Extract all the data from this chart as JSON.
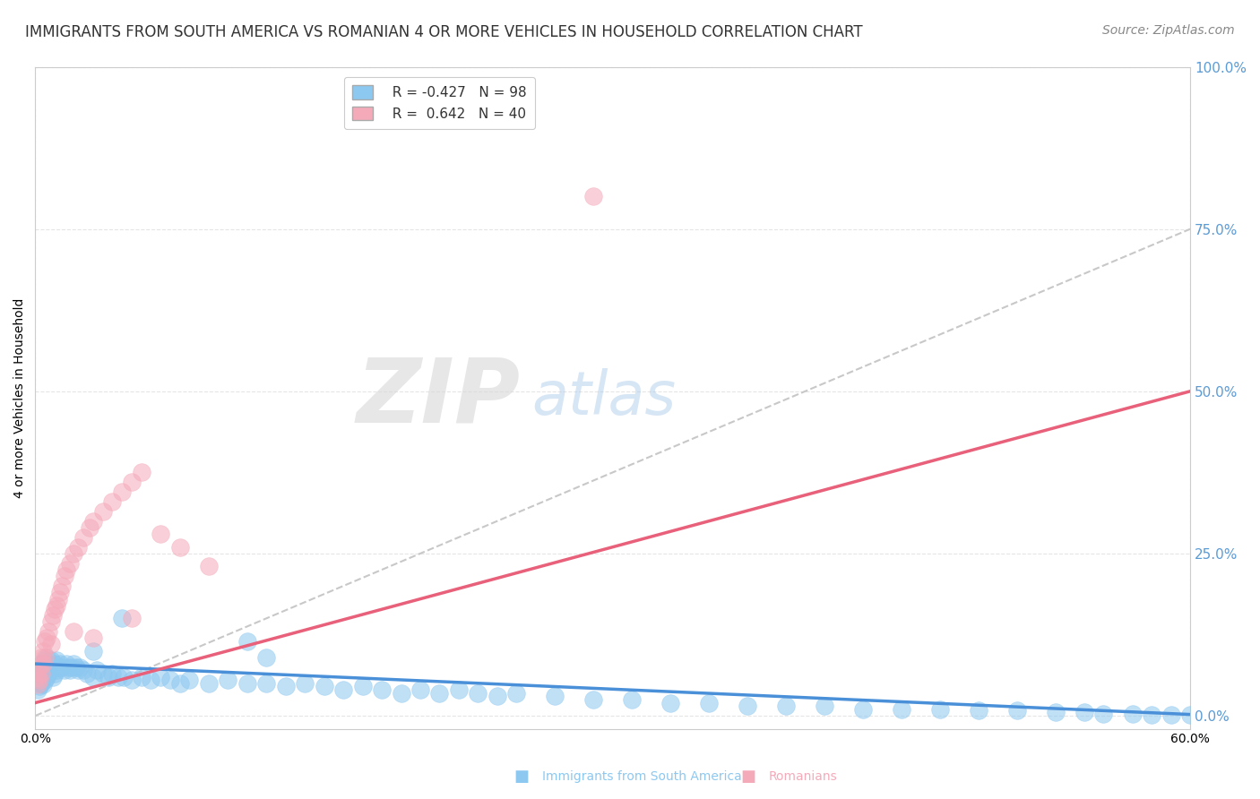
{
  "title": "IMMIGRANTS FROM SOUTH AMERICA VS ROMANIAN 4 OR MORE VEHICLES IN HOUSEHOLD CORRELATION CHART",
  "source": "Source: ZipAtlas.com",
  "ylabel": "4 or more Vehicles in Household",
  "right_yticks": [
    0.0,
    0.25,
    0.5,
    0.75,
    1.0
  ],
  "right_yticklabels": [
    "0.0%",
    "25.0%",
    "50.0%",
    "75.0%",
    "100.0%"
  ],
  "xlim": [
    0.0,
    0.6
  ],
  "ylim": [
    -0.02,
    1.0
  ],
  "xticks": [
    0.0,
    0.6
  ],
  "xticklabels": [
    "0.0%",
    "60.0%"
  ],
  "blue_color": "#8DC8F0",
  "pink_color": "#F5AABA",
  "blue_line_color": "#4A90D9",
  "pink_line_color": "#E8607A",
  "dash_line_color": "#C8C8C8",
  "legend_R_blue": "-0.427",
  "legend_N_blue": "98",
  "legend_R_pink": "0.642",
  "legend_N_pink": "40",
  "right_tick_color": "#5B9BD5",
  "title_fontsize": 12,
  "source_fontsize": 10,
  "ylabel_fontsize": 10,
  "axis_fontsize": 10,
  "legend_fontsize": 11,
  "watermark_zip": "ZIP",
  "watermark_atlas": "atlas",
  "blue_scatter_x": [
    0.001,
    0.001,
    0.001,
    0.002,
    0.002,
    0.002,
    0.002,
    0.003,
    0.003,
    0.003,
    0.004,
    0.004,
    0.004,
    0.005,
    0.005,
    0.005,
    0.006,
    0.006,
    0.006,
    0.007,
    0.007,
    0.008,
    0.008,
    0.009,
    0.009,
    0.01,
    0.01,
    0.011,
    0.011,
    0.012,
    0.013,
    0.014,
    0.015,
    0.016,
    0.017,
    0.018,
    0.019,
    0.02,
    0.021,
    0.022,
    0.023,
    0.025,
    0.027,
    0.03,
    0.032,
    0.035,
    0.038,
    0.04,
    0.043,
    0.046,
    0.05,
    0.055,
    0.06,
    0.065,
    0.07,
    0.075,
    0.08,
    0.09,
    0.1,
    0.11,
    0.12,
    0.13,
    0.14,
    0.15,
    0.16,
    0.17,
    0.18,
    0.19,
    0.2,
    0.21,
    0.22,
    0.23,
    0.24,
    0.25,
    0.27,
    0.29,
    0.31,
    0.33,
    0.35,
    0.37,
    0.39,
    0.41,
    0.43,
    0.45,
    0.47,
    0.49,
    0.51,
    0.53,
    0.545,
    0.555,
    0.57,
    0.58,
    0.59,
    0.6,
    0.03,
    0.045,
    0.11,
    0.12
  ],
  "blue_scatter_y": [
    0.065,
    0.055,
    0.04,
    0.07,
    0.06,
    0.05,
    0.045,
    0.08,
    0.065,
    0.05,
    0.075,
    0.06,
    0.048,
    0.085,
    0.07,
    0.055,
    0.09,
    0.075,
    0.06,
    0.08,
    0.065,
    0.085,
    0.07,
    0.075,
    0.06,
    0.08,
    0.065,
    0.085,
    0.07,
    0.075,
    0.08,
    0.075,
    0.07,
    0.08,
    0.075,
    0.07,
    0.075,
    0.08,
    0.075,
    0.07,
    0.075,
    0.07,
    0.065,
    0.06,
    0.07,
    0.065,
    0.06,
    0.065,
    0.06,
    0.06,
    0.055,
    0.06,
    0.055,
    0.06,
    0.055,
    0.05,
    0.055,
    0.05,
    0.055,
    0.05,
    0.05,
    0.045,
    0.05,
    0.045,
    0.04,
    0.045,
    0.04,
    0.035,
    0.04,
    0.035,
    0.04,
    0.035,
    0.03,
    0.035,
    0.03,
    0.025,
    0.025,
    0.02,
    0.02,
    0.015,
    0.015,
    0.015,
    0.01,
    0.01,
    0.01,
    0.008,
    0.008,
    0.005,
    0.005,
    0.003,
    0.003,
    0.002,
    0.002,
    0.001,
    0.1,
    0.15,
    0.115,
    0.09
  ],
  "pink_scatter_x": [
    0.001,
    0.001,
    0.002,
    0.002,
    0.003,
    0.003,
    0.004,
    0.004,
    0.005,
    0.005,
    0.006,
    0.007,
    0.008,
    0.008,
    0.009,
    0.01,
    0.011,
    0.012,
    0.013,
    0.014,
    0.015,
    0.016,
    0.018,
    0.02,
    0.022,
    0.025,
    0.028,
    0.03,
    0.035,
    0.04,
    0.045,
    0.05,
    0.055,
    0.065,
    0.075,
    0.09,
    0.29,
    0.05,
    0.02,
    0.03
  ],
  "pink_scatter_y": [
    0.06,
    0.048,
    0.075,
    0.055,
    0.09,
    0.065,
    0.1,
    0.08,
    0.115,
    0.09,
    0.12,
    0.13,
    0.145,
    0.11,
    0.155,
    0.165,
    0.17,
    0.18,
    0.19,
    0.2,
    0.215,
    0.225,
    0.235,
    0.25,
    0.26,
    0.275,
    0.29,
    0.3,
    0.315,
    0.33,
    0.345,
    0.36,
    0.375,
    0.28,
    0.26,
    0.23,
    0.8,
    0.15,
    0.13,
    0.12
  ],
  "blue_trend_x": [
    0.0,
    0.6
  ],
  "blue_trend_y": [
    0.08,
    0.002
  ],
  "pink_trend_x": [
    0.0,
    0.6
  ],
  "pink_trend_y": [
    0.02,
    0.5
  ],
  "dash_trend_x": [
    0.0,
    0.6
  ],
  "dash_trend_y": [
    0.0,
    0.75
  ],
  "grid_color": "#E5E5E5",
  "background_color": "#FFFFFF",
  "legend_blue_label": "Immigrants from South America",
  "legend_pink_label": "Romanians"
}
